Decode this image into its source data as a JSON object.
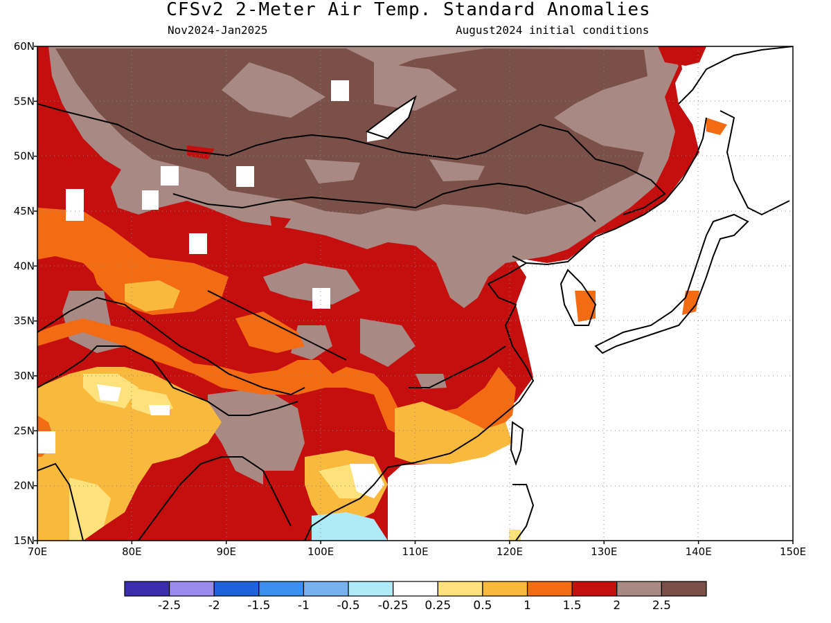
{
  "header": {
    "title": "CFSv2 2-Meter Air Temp. Standard Anomalies",
    "period": "Nov2024-Jan2025",
    "init": "August2024 initial conditions"
  },
  "map": {
    "lon_range": [
      70,
      150
    ],
    "lat_range": [
      15,
      60
    ],
    "lon_ticks": [
      "70E",
      "80E",
      "90E",
      "100E",
      "110E",
      "120E",
      "130E",
      "140E",
      "150E"
    ],
    "lat_ticks": [
      "60N",
      "55N",
      "50N",
      "45N",
      "40N",
      "35N",
      "30N",
      "25N",
      "20N",
      "15N"
    ],
    "grid": "dotted"
  },
  "colorbar": {
    "colors": [
      "#3b2eae",
      "#9b8bef",
      "#1f63db",
      "#3b8fef",
      "#78b1f0",
      "#aeeaf8",
      "#ffffff",
      "#fde27c",
      "#f8b93c",
      "#f36b12",
      "#c50f0f",
      "#a98983",
      "#7a5048"
    ],
    "labels": [
      "-2.5",
      "-2",
      "-1.5",
      "-1",
      "-0.5",
      "-0.25",
      "0.25",
      "0.5",
      "1",
      "1.5",
      "2",
      "2.5"
    ]
  }
}
